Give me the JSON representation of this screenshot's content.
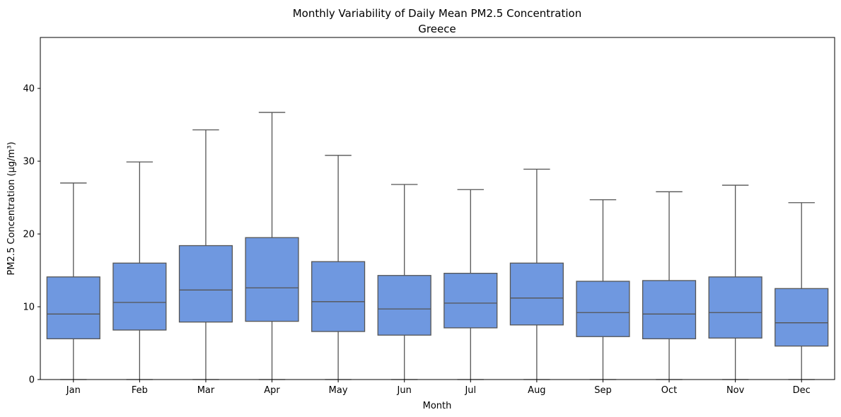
{
  "chart_data": {
    "type": "box",
    "title": "Monthly Variability of Daily Mean PM2.5 Concentration",
    "subtitle": "Greece",
    "xlabel": "Month",
    "ylabel": "PM2.5 Concentration (µg/m³)",
    "ylim": [
      0,
      47
    ],
    "yticks": [
      0,
      10,
      20,
      30,
      40
    ],
    "grid": false,
    "box_color": "#6f98e0",
    "line_color": "#555555",
    "categories": [
      "Jan",
      "Feb",
      "Mar",
      "Apr",
      "May",
      "Jun",
      "Jul",
      "Aug",
      "Sep",
      "Oct",
      "Nov",
      "Dec"
    ],
    "boxes": [
      {
        "whislo": 0,
        "q1": 5.6,
        "median": 9.0,
        "q3": 14.1,
        "whishi": 27.0
      },
      {
        "whislo": 0,
        "q1": 6.8,
        "median": 10.6,
        "q3": 16.0,
        "whishi": 29.9
      },
      {
        "whislo": 0,
        "q1": 7.9,
        "median": 12.3,
        "q3": 18.4,
        "whishi": 34.3
      },
      {
        "whislo": 0,
        "q1": 8.0,
        "median": 12.6,
        "q3": 19.5,
        "whishi": 36.7
      },
      {
        "whislo": 0,
        "q1": 6.6,
        "median": 10.7,
        "q3": 16.2,
        "whishi": 30.8
      },
      {
        "whislo": 0,
        "q1": 6.1,
        "median": 9.7,
        "q3": 14.3,
        "whishi": 26.8
      },
      {
        "whislo": 0,
        "q1": 7.1,
        "median": 10.5,
        "q3": 14.6,
        "whishi": 26.1
      },
      {
        "whislo": 0,
        "q1": 7.5,
        "median": 11.2,
        "q3": 16.0,
        "whishi": 28.9
      },
      {
        "whislo": 0,
        "q1": 5.9,
        "median": 9.2,
        "q3": 13.5,
        "whishi": 24.7
      },
      {
        "whislo": 0,
        "q1": 5.6,
        "median": 9.0,
        "q3": 13.6,
        "whishi": 25.8
      },
      {
        "whislo": 0,
        "q1": 5.7,
        "median": 9.2,
        "q3": 14.1,
        "whishi": 26.7
      },
      {
        "whislo": 0,
        "q1": 4.6,
        "median": 7.8,
        "q3": 12.5,
        "whishi": 24.3
      }
    ]
  }
}
